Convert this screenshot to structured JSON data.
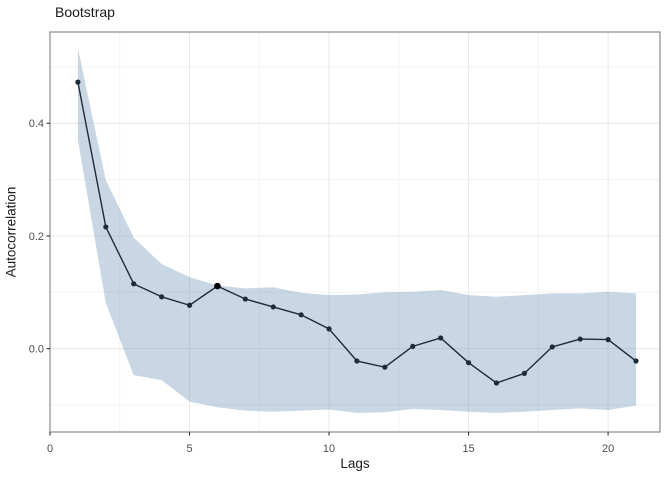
{
  "figure": {
    "title": "Bootstrap"
  },
  "chart_data": {
    "type": "line",
    "title": "Bootstrap",
    "xlabel": "Lags",
    "ylabel": "Autocorrelation",
    "legend": "none",
    "grid": "on",
    "x": [
      1,
      2,
      3,
      4,
      5,
      6,
      7,
      8,
      9,
      10,
      11,
      12,
      13,
      14,
      15,
      16,
      17,
      18,
      19,
      20,
      21
    ],
    "series": [
      {
        "name": "autocorrelation",
        "marker": "point",
        "values": [
          0.473,
          0.216,
          0.115,
          0.092,
          0.077,
          0.111,
          0.088,
          0.074,
          0.06,
          0.035,
          -0.022,
          -0.033,
          0.004,
          0.019,
          -0.025,
          -0.061,
          -0.044,
          0.003,
          0.017,
          0.016,
          -0.022
        ]
      }
    ],
    "band": {
      "name": "bootstrap-confidence-band",
      "upper": [
        0.533,
        0.299,
        0.197,
        0.15,
        0.127,
        0.112,
        0.107,
        0.109,
        0.099,
        0.095,
        0.096,
        0.1,
        0.101,
        0.104,
        0.095,
        0.092,
        0.095,
        0.098,
        0.098,
        0.101,
        0.098
      ],
      "lower": [
        0.37,
        0.081,
        -0.047,
        -0.056,
        -0.094,
        -0.104,
        -0.11,
        -0.112,
        -0.11,
        -0.108,
        -0.114,
        -0.113,
        -0.107,
        -0.109,
        -0.112,
        -0.114,
        -0.112,
        -0.109,
        -0.106,
        -0.109,
        -0.101
      ]
    },
    "highlight_lag": 6,
    "x_axis": {
      "label": "Lags",
      "range": [
        0,
        21.86
      ],
      "major_ticks": [
        0,
        5,
        10,
        15,
        20
      ],
      "tick_labels": [
        "0",
        "5",
        "10",
        "15",
        "20"
      ],
      "minor_ticks": [
        2.5,
        7.5,
        12.5,
        17.5
      ]
    },
    "y_axis": {
      "label": "Autocorrelation",
      "range": [
        -0.148,
        0.562
      ],
      "major_ticks": [
        0.0,
        0.2,
        0.4
      ],
      "tick_labels": [
        "0.0",
        "0.2",
        "0.4"
      ],
      "minor_ticks": [
        -0.1,
        0.1,
        0.3,
        0.5
      ]
    },
    "colors": {
      "band_fill": "#c7d7e3",
      "band_rgba": "rgba(98,139,176,0.35)",
      "line": "#1d2b3a",
      "point": "#1d2b3a",
      "highlight_point": "#000000",
      "grid_major": "#e8e8e8",
      "grid_minor": "#f3f3f3",
      "panel_border": "#8a8a8a",
      "tick_mark": "#333333",
      "tick_label": "#4d4d4d",
      "panel_bg": "#ffffff"
    }
  }
}
